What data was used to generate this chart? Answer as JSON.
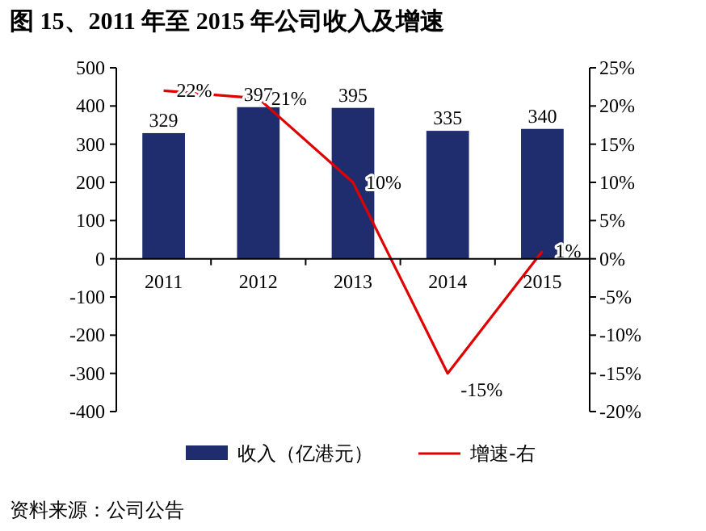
{
  "chart_data": {
    "type": "bar",
    "title": "图 15、2011 年至 2015 年公司收入及增速",
    "categories": [
      "2011",
      "2012",
      "2013",
      "2014",
      "2015"
    ],
    "series": [
      {
        "name": "收入（亿港元）",
        "color": "#1f2d6e",
        "values": [
          329,
          397,
          395,
          335,
          340
        ],
        "value_labels": [
          "329",
          "397",
          "395",
          "335",
          "340"
        ]
      },
      {
        "name": "增速-右",
        "type": "line",
        "axis": "y2",
        "color": "#e00000",
        "values": [
          22,
          21,
          10,
          -15,
          1
        ],
        "value_labels": [
          "22%",
          "21%",
          "10%",
          "-15%",
          "1%"
        ]
      }
    ],
    "ylim": [
      -400,
      500
    ],
    "yticks": [
      -400,
      -300,
      -200,
      -100,
      0,
      100,
      200,
      300,
      400,
      500
    ],
    "y2lim": [
      -20,
      25
    ],
    "y2ticks": [
      {
        "value": -20,
        "label": "-20%"
      },
      {
        "value": -15,
        "label": "-15%"
      },
      {
        "value": -10,
        "label": "-10%"
      },
      {
        "value": -5,
        "label": "-5%"
      },
      {
        "value": 0,
        "label": "0%"
      },
      {
        "value": 5,
        "label": "5%"
      },
      {
        "value": 10,
        "label": "10%"
      },
      {
        "value": 15,
        "label": "15%"
      },
      {
        "value": 20,
        "label": "20%"
      },
      {
        "value": 25,
        "label": "25%"
      }
    ],
    "legend": "bottom",
    "grid": false,
    "annotations": [
      "资料来源：公司公告"
    ]
  }
}
